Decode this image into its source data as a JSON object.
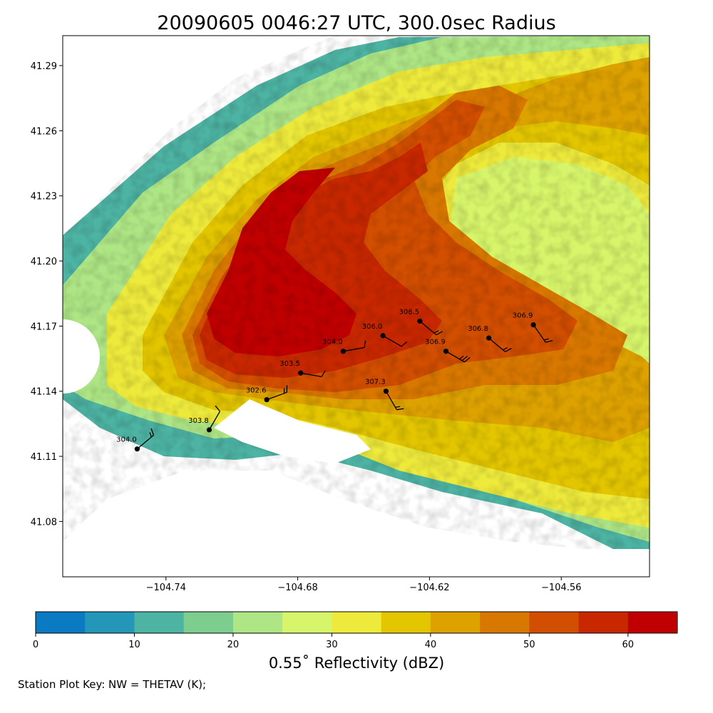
{
  "title": "20090605 0046:27 UTC, 300.0sec Radius",
  "map": {
    "x_ticks": [
      {
        "lon": -104.74,
        "label": "−104.74"
      },
      {
        "lon": -104.68,
        "label": "−104.68"
      },
      {
        "lon": -104.62,
        "label": "−104.62"
      },
      {
        "lon": -104.56,
        "label": "−104.56"
      }
    ],
    "y_ticks": [
      {
        "lat": 41.29,
        "label": "41.29"
      },
      {
        "lat": 41.26,
        "label": "41.26"
      },
      {
        "lat": 41.23,
        "label": "41.23"
      },
      {
        "lat": 41.2,
        "label": "41.20"
      },
      {
        "lat": 41.17,
        "label": "41.17"
      },
      {
        "lat": 41.14,
        "label": "41.14"
      },
      {
        "lat": 41.11,
        "label": "41.11"
      },
      {
        "lat": 41.08,
        "label": "41.08"
      }
    ],
    "lon_range": [
      -104.787,
      -104.5198
    ],
    "lat_range": [
      41.0545,
      41.3038
    ]
  },
  "stations": [
    {
      "lon": -104.7531,
      "lat": 41.1134,
      "thetav": "304.0",
      "wind_dir": 50,
      "flags": 2
    },
    {
      "lon": -104.7203,
      "lat": 41.1222,
      "thetav": "303.8",
      "wind_dir": 30,
      "flags": 1
    },
    {
      "lon": -104.6941,
      "lat": 41.1361,
      "thetav": "302.6",
      "wind_dir": 70,
      "flags": 2
    },
    {
      "lon": -104.6787,
      "lat": 41.1484,
      "thetav": "303.5",
      "wind_dir": 100,
      "flags": 1
    },
    {
      "lon": -104.6593,
      "lat": 41.1584,
      "thetav": "304.0",
      "wind_dir": 80,
      "flags": 1
    },
    {
      "lon": -104.6412,
      "lat": 41.1656,
      "thetav": "306.0",
      "wind_dir": 120,
      "flags": 1
    },
    {
      "lon": -104.6244,
      "lat": 41.1723,
      "thetav": "306.5",
      "wind_dir": 130,
      "flags": 2
    },
    {
      "lon": -104.6398,
      "lat": 41.14,
      "thetav": "307.3",
      "wind_dir": 150,
      "flags": 2
    },
    {
      "lon": -104.6125,
      "lat": 41.1584,
      "thetav": "306.9",
      "wind_dir": 120,
      "flags": 3
    },
    {
      "lon": -104.593,
      "lat": 41.1645,
      "thetav": "306.8",
      "wind_dir": 130,
      "flags": 2
    },
    {
      "lon": -104.5727,
      "lat": 41.1706,
      "thetav": "306.9",
      "wind_dir": 145,
      "flags": 2
    }
  ],
  "colorbar": {
    "label": "0.55˚ Reflectivity (dBZ)",
    "min": 0,
    "max": 65,
    "step": 5,
    "tick_values": [
      0,
      10,
      20,
      30,
      40,
      50,
      60
    ],
    "colors": [
      "#0a7bc2",
      "#2497b8",
      "#4db3a3",
      "#7dcd8e",
      "#aee685",
      "#d7f56a",
      "#eeea3c",
      "#e3c600",
      "#dea200",
      "#d97800",
      "#d24e00",
      "#c82800",
      "#c00000"
    ]
  },
  "key": "Station Plot Key: NW = THETAV (K);"
}
